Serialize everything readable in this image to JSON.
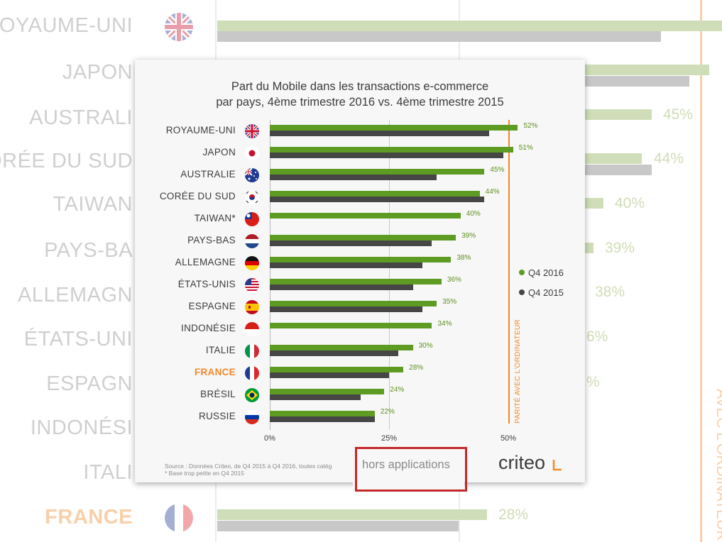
{
  "colors": {
    "q4_2016": "#5e9b22",
    "q4_2015": "#464646",
    "parity": "#f0892a",
    "highlight": "#f0892a",
    "annotation_box": "#c5282a"
  },
  "chart_data": {
    "type": "bar",
    "orientation": "horizontal",
    "title": "Part du Mobile dans les transactions e-commerce",
    "subtitle": "par pays, 4ème trimestre 2016 vs. 4ème trimestre 2015",
    "categories": [
      "ROYAUME-UNI",
      "JAPON",
      "AUSTRALIE",
      "CORÉE DU SUD",
      "TAIWAN*",
      "PAYS-BAS",
      "ALLEMAGNE",
      "ÉTATS-UNIS",
      "ESPAGNE",
      "INDONÉSIE",
      "ITALIE",
      "FRANCE",
      "BRÉSIL",
      "RUSSIE"
    ],
    "flags": [
      "uk-flag-icon",
      "japan-flag-icon",
      "australia-flag-icon",
      "south-korea-flag-icon",
      "taiwan-flag-icon",
      "netherlands-flag-icon",
      "germany-flag-icon",
      "usa-flag-icon",
      "spain-flag-icon",
      "indonesia-flag-icon",
      "italy-flag-icon",
      "france-flag-icon",
      "brazil-flag-icon",
      "russia-flag-icon"
    ],
    "highlighted_category": "FRANCE",
    "series": [
      {
        "name": "Q4 2016",
        "values": [
          52,
          51,
          45,
          44,
          40,
          39,
          38,
          36,
          35,
          34,
          30,
          28,
          24,
          22
        ]
      },
      {
        "name": "Q4 2015",
        "values": [
          46,
          49,
          35,
          45,
          null,
          34,
          32,
          30,
          32,
          null,
          27,
          25,
          19,
          22
        ]
      }
    ],
    "value_labels": [
      "52%",
      "51%",
      "45%",
      "44%",
      "40%",
      "39%",
      "38%",
      "36%",
      "35%",
      "34%",
      "30%",
      "28%",
      "24%",
      "22%"
    ],
    "xlim": [
      0,
      50
    ],
    "xticks": [
      "0%",
      "25%",
      "50%"
    ],
    "reference_line": {
      "value": 50,
      "label": "PARITÉ AVEC L'ORDINATEUR"
    },
    "legend_position": "right",
    "grid": true
  },
  "footer": {
    "source": "Source : Données Criteo, de Q4 2015 à Q4 2016, toutes catég",
    "note": "* Base trop petite en Q4 2015",
    "overlay_text": "hors applications",
    "logo": "criteo"
  },
  "background": {
    "labels": [
      "ROYAUME-UNI",
      "JAPON",
      "AUSTRALI",
      "CORÉE DU SUD",
      "TAIWAN",
      "PAYS-BA",
      "ALLEMAGN",
      "ÉTATS-UNI",
      "ESPAGN",
      "INDONÉSI",
      "ITALI",
      "FRANCE"
    ],
    "values": [
      "45%",
      "44%",
      "40%",
      "39%",
      "38%",
      "6%",
      "%",
      "28%"
    ],
    "parity": "AVEC L'ORDINATEUR"
  }
}
